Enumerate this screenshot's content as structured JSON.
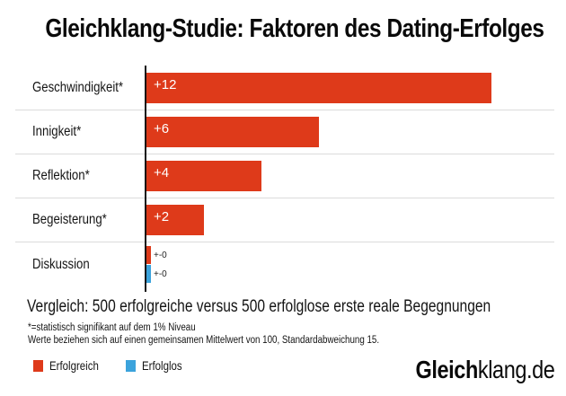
{
  "title": "Gleichklang-Studie: Faktoren des Dating-Erfolges",
  "chart_data": {
    "type": "bar",
    "orientation": "horizontal",
    "title": "Gleichklang-Studie: Faktoren des Dating-Erfolges",
    "categories": [
      "Geschwindigkeit*",
      "Innigkeit*",
      "Reflektion*",
      "Begeisterung*",
      "Diskussion"
    ],
    "series": [
      {
        "name": "Erfolgreich",
        "color": "#de3a1a",
        "values": [
          12,
          6,
          4,
          2,
          0
        ],
        "labels": [
          "+12",
          "+6",
          "+4",
          "+2",
          "+-0"
        ]
      },
      {
        "name": "Erfolglos",
        "color": "#3ba3dc",
        "values": [
          null,
          null,
          null,
          null,
          0
        ],
        "labels": [
          null,
          null,
          null,
          null,
          "+-0"
        ]
      }
    ],
    "xlim": [
      0,
      12
    ],
    "grid": false,
    "value_label_color_inside": "#ffffff",
    "legend_position": "bottom-left"
  },
  "subtitle": "Vergleich: 500 erfolgreiche versus 500 erfolglose erste reale Begegnungen",
  "footnotes": {
    "line1": "*=statistisch signifikant auf dem 1% Niveau",
    "line2": "Werte beziehen sich auf einen gemeinsamen Mittelwert von 100, Standardabweichung 15."
  },
  "legend": {
    "items": [
      {
        "label": "Erfolgreich",
        "color": "#de3a1a"
      },
      {
        "label": "Erfolglos",
        "color": "#3ba3dc"
      }
    ]
  },
  "logo": {
    "bold": "Gleich",
    "rest": "klang.de"
  }
}
